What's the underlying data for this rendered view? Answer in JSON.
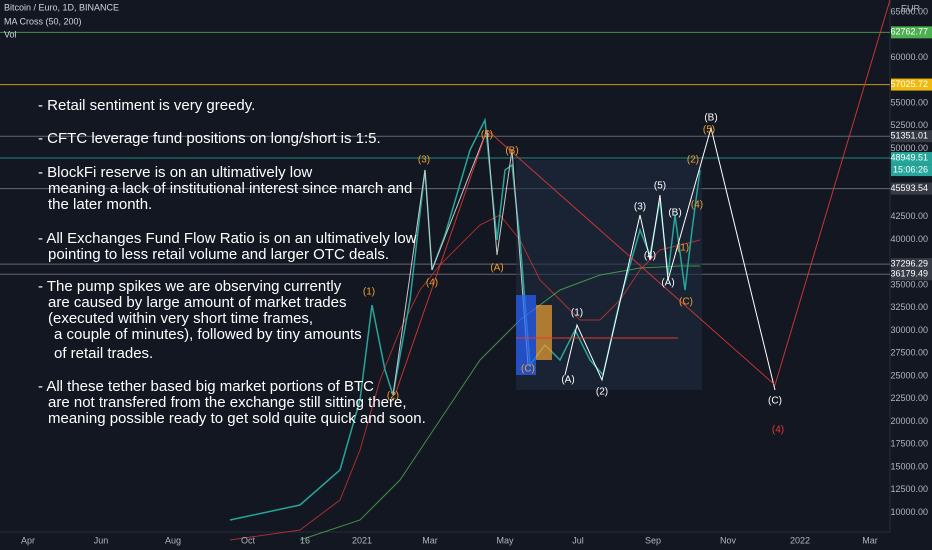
{
  "header": {
    "symbol": "Bitcoin / Euro, 1D, BINANCE",
    "indicator": "MA Cross (50, 200)",
    "volume": "Vol",
    "currency": "EUR"
  },
  "notes": [
    "- Retail sentiment is very greedy.",
    "- CFTC leverage fund positions on long/short is 1:5.",
    "- BlockFi reserve is on an ultimatively low",
    "meaning a lack of institutional interest since march and",
    "the later month.",
    "- All Exchanges Fund Flow Ratio is on an ultimatively low",
    "pointing to less retail volume and larger OTC deals.",
    "- The pump spikes we are observing currently",
    "are caused by large amount of market trades",
    "(executed within very short time frames,",
    "a couple of minutes), followed by tiny amounts",
    "of retail trades.",
    "- All these tether based big market portions of BTC",
    "are not transfered from the exchange still sitting there,",
    "meaning possible ready to get sold quite quick and soon."
  ],
  "price_axis": [
    {
      "value": 65000,
      "label": "65000.00"
    },
    {
      "value": 60000,
      "label": "60000.00"
    },
    {
      "value": 55000,
      "label": "55000.00"
    },
    {
      "value": 52500,
      "label": "52500.00"
    },
    {
      "value": 50000,
      "label": "50000.00"
    },
    {
      "value": 42500,
      "label": "42500.00"
    },
    {
      "value": 40000,
      "label": "40000.00"
    },
    {
      "value": 35000,
      "label": "35000.00"
    },
    {
      "value": 32500,
      "label": "32500.00"
    },
    {
      "value": 30000,
      "label": "30000.00"
    },
    {
      "value": 27500,
      "label": "27500.00"
    },
    {
      "value": 25000,
      "label": "25000.00"
    },
    {
      "value": 22500,
      "label": "22500.00"
    },
    {
      "value": 20000,
      "label": "20000.00"
    },
    {
      "value": 17500,
      "label": "17500.00"
    },
    {
      "value": 15000,
      "label": "15000.00"
    },
    {
      "value": 12500,
      "label": "12500.00"
    },
    {
      "value": 10000,
      "label": "10000.00"
    }
  ],
  "price_badges": [
    {
      "value": 62762.77,
      "label": "62762.77",
      "color": "#4caf50"
    },
    {
      "value": 57025.72,
      "label": "57025.72",
      "color": "#f0b90b"
    },
    {
      "value": 51351.01,
      "label": "51351.01",
      "color": "#363a45"
    },
    {
      "value": 48949.51,
      "label": "48949.51",
      "color": "#26a69a"
    },
    {
      "value": 45593.54,
      "label": "45593.54",
      "color": "#363a45"
    },
    {
      "value": 37296.29,
      "label": "37296.29",
      "color": "#363a45"
    },
    {
      "value": 36179.49,
      "label": "36179.49",
      "color": "#363a45"
    }
  ],
  "countdown": "15:06:26",
  "time_axis": [
    "Apr",
    "Jun",
    "Aug",
    "Oct",
    "16",
    "2021",
    "Mar",
    "May",
    "Jul",
    "Sep",
    "Nov",
    "2022",
    "Mar"
  ],
  "waves": [
    {
      "label": "(1)",
      "color": "#f0a030"
    },
    {
      "label": "(2)",
      "color": "#f0a030"
    },
    {
      "label": "(3)",
      "color": "#f0a030"
    },
    {
      "label": "(4)",
      "color": "#f0a030"
    },
    {
      "label": "(5)",
      "color": "#f0a030"
    },
    {
      "label": "(B)",
      "color": "#f0a030"
    },
    {
      "label": "(A)",
      "color": "#f0a030"
    },
    {
      "label": "(C)",
      "color": "#f0a030"
    },
    {
      "label": "(1)",
      "color": "#ffffff"
    },
    {
      "label": "(A)",
      "color": "#ffffff"
    },
    {
      "label": "(2)",
      "color": "#ffffff"
    },
    {
      "label": "(3)",
      "color": "#ffffff"
    },
    {
      "label": "(4)",
      "color": "#ffffff"
    },
    {
      "label": "(5)",
      "color": "#ffffff"
    },
    {
      "label": "(B)",
      "color": "#ffffff"
    },
    {
      "label": "(A)",
      "color": "#ffffff"
    },
    {
      "label": "(B)",
      "color": "#ffffff"
    },
    {
      "label": "(5)",
      "color": "#f0a030"
    },
    {
      "label": "(2)",
      "color": "#f0a030"
    },
    {
      "label": "(4)",
      "color": "#f0a030"
    },
    {
      "label": "(1)",
      "color": "#f0a030"
    },
    {
      "label": "(C)",
      "color": "#f0a030"
    },
    {
      "label": "(C)",
      "color": "#ffffff"
    },
    {
      "label": "(4)",
      "color": "#e53935"
    }
  ]
}
